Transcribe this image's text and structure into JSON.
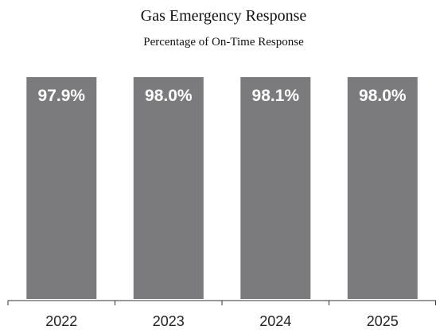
{
  "chart_data": {
    "type": "bar",
    "title": "Gas Emergency Response",
    "subtitle": "Percentage of On-Time Response",
    "categories": [
      "2022",
      "2023",
      "2024",
      "2025"
    ],
    "values": [
      97.9,
      98.0,
      98.1,
      98.0
    ],
    "value_labels": [
      "97.9%",
      "98.0%",
      "98.1%",
      "98.0%"
    ],
    "xlabel": "",
    "ylabel": "",
    "bar_color": "#7b7b7d",
    "label_color": "#ffffff",
    "axis_color": "#333333",
    "grid": false
  }
}
